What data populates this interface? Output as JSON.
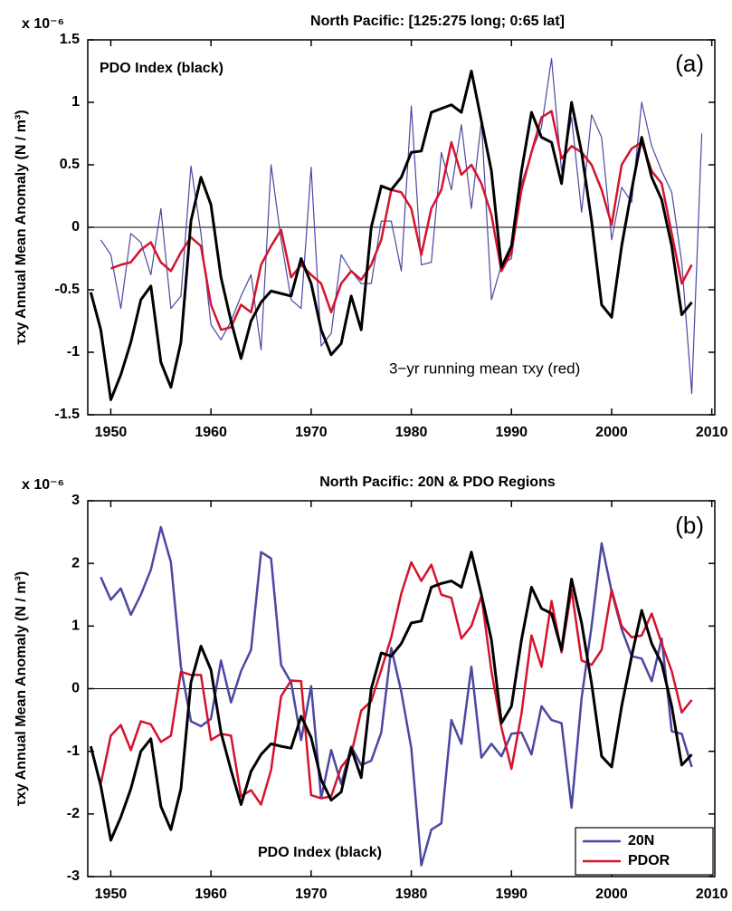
{
  "chart_data": [
    {
      "type": "line",
      "title": "North Pacific:  [125:275 long; 0:65 lat]",
      "y_multiplier": "x 10⁻⁶",
      "ylabel": "τxy  Annual Mean Anomaly  (N / m³)",
      "annotations": [
        "PDO Index  (black)",
        "3−yr running mean τxy  (red)",
        "(a)"
      ],
      "x": [
        1948,
        1949,
        1950,
        1951,
        1952,
        1953,
        1954,
        1955,
        1956,
        1957,
        1958,
        1959,
        1960,
        1961,
        1962,
        1963,
        1964,
        1965,
        1966,
        1967,
        1968,
        1969,
        1970,
        1971,
        1972,
        1973,
        1974,
        1975,
        1976,
        1977,
        1978,
        1979,
        1980,
        1981,
        1982,
        1983,
        1984,
        1985,
        1986,
        1987,
        1988,
        1989,
        1990,
        1991,
        1992,
        1993,
        1994,
        1995,
        1996,
        1997,
        1998,
        1999,
        2000,
        2001,
        2002,
        2003,
        2004,
        2005,
        2006,
        2007,
        2008,
        2009
      ],
      "series": [
        {
          "color": "#4b47a3",
          "values": [
            null,
            -0.1,
            -0.22,
            -0.65,
            -0.05,
            -0.12,
            -0.38,
            0.15,
            -0.65,
            -0.55,
            0.49,
            -0.05,
            -0.78,
            -0.9,
            -0.75,
            -0.55,
            -0.38,
            -0.98,
            0.5,
            -0.1,
            -0.58,
            -0.65,
            0.48,
            -0.95,
            -0.85,
            -0.22,
            -0.35,
            -0.45,
            -0.45,
            0.05,
            0.05,
            -0.35,
            0.97,
            -0.3,
            -0.28,
            0.6,
            0.3,
            0.82,
            0.15,
            0.85,
            -0.58,
            -0.3,
            -0.25,
            0.35,
            0.6,
            0.8,
            1.35,
            0.45,
            0.88,
            0.12,
            0.9,
            0.72,
            -0.1,
            0.32,
            0.2,
            1.0,
            0.65,
            0.45,
            0.28,
            -0.28,
            -1.33,
            0.75
          ]
        },
        {
          "color": "#d5132c",
          "values": [
            null,
            null,
            -0.33,
            -0.3,
            -0.28,
            -0.18,
            -0.12,
            -0.28,
            -0.35,
            -0.2,
            -0.08,
            -0.15,
            -0.62,
            -0.82,
            -0.8,
            -0.62,
            -0.68,
            -0.3,
            -0.15,
            -0.02,
            -0.4,
            -0.3,
            -0.38,
            -0.45,
            -0.68,
            -0.45,
            -0.35,
            -0.42,
            -0.3,
            -0.1,
            0.3,
            0.28,
            0.15,
            -0.22,
            0.15,
            0.3,
            0.68,
            0.42,
            0.5,
            0.35,
            0.1,
            -0.35,
            -0.2,
            0.3,
            0.6,
            0.88,
            0.93,
            0.55,
            0.65,
            0.6,
            0.5,
            0.3,
            0.02,
            0.5,
            0.63,
            0.68,
            0.45,
            0.35,
            -0.05,
            -0.45,
            -0.3,
            null
          ]
        },
        {
          "color": "#000000",
          "values": [
            -0.52,
            -0.82,
            -1.38,
            -1.18,
            -0.92,
            -0.58,
            -0.47,
            -1.08,
            -1.28,
            -0.92,
            0.05,
            0.4,
            0.18,
            -0.4,
            -0.75,
            -1.05,
            -0.75,
            -0.6,
            -0.51,
            -0.53,
            -0.55,
            -0.25,
            -0.45,
            -0.82,
            -1.02,
            -0.93,
            -0.55,
            -0.82,
            0.0,
            0.33,
            0.3,
            0.4,
            0.6,
            0.61,
            0.92,
            0.95,
            0.98,
            0.92,
            1.25,
            0.85,
            0.45,
            -0.32,
            -0.15,
            0.45,
            0.92,
            0.72,
            0.68,
            0.35,
            1.0,
            0.6,
            0.05,
            -0.62,
            -0.72,
            -0.15,
            0.3,
            0.72,
            0.4,
            0.22,
            -0.15,
            -0.7,
            -0.6,
            null
          ]
        }
      ],
      "xlim": [
        1947.7,
        2010.3
      ],
      "xticks": [
        1950,
        1960,
        1970,
        1980,
        1990,
        2000,
        2010
      ],
      "ylim": [
        -1.5,
        1.5
      ],
      "yticks": [
        -1.5,
        -1,
        -0.5,
        0,
        0.5,
        1,
        1.5
      ],
      "grid": false
    },
    {
      "type": "line",
      "title": "North Pacific: 20N  &  PDO Regions",
      "y_multiplier": "x 10⁻⁶",
      "ylabel": "τxy  Annual Mean Anomaly  (N / m³)",
      "annotations": [
        "(b)",
        "PDO Index  (black)"
      ],
      "x": [
        1948,
        1949,
        1950,
        1951,
        1952,
        1953,
        1954,
        1955,
        1956,
        1957,
        1958,
        1959,
        1960,
        1961,
        1962,
        1963,
        1964,
        1965,
        1966,
        1967,
        1968,
        1969,
        1970,
        1971,
        1972,
        1973,
        1974,
        1975,
        1976,
        1977,
        1978,
        1979,
        1980,
        1981,
        1982,
        1983,
        1984,
        1985,
        1986,
        1987,
        1988,
        1989,
        1990,
        1991,
        1992,
        1993,
        1994,
        1995,
        1996,
        1997,
        1998,
        1999,
        2000,
        2001,
        2002,
        2003,
        2004,
        2005,
        2006,
        2007,
        2008
      ],
      "series": [
        {
          "name": "20N",
          "color": "#4b47a3",
          "values": [
            null,
            1.78,
            1.42,
            1.6,
            1.18,
            1.5,
            1.9,
            2.58,
            2.02,
            0.35,
            -0.52,
            -0.6,
            -0.48,
            0.45,
            -0.22,
            0.28,
            0.62,
            2.18,
            2.08,
            0.38,
            0.1,
            -0.82,
            0.04,
            -1.75,
            -0.98,
            -1.52,
            -0.92,
            -1.22,
            -1.15,
            -0.7,
            0.65,
            -0.05,
            -0.95,
            -2.82,
            -2.25,
            -2.15,
            -0.5,
            -0.88,
            0.35,
            -1.1,
            -0.88,
            -1.08,
            -0.72,
            -0.7,
            -1.05,
            -0.28,
            -0.5,
            -0.55,
            -1.9,
            -0.15,
            1.0,
            2.32,
            1.55,
            0.95,
            0.52,
            0.48,
            0.12,
            0.8,
            -0.68,
            -0.72,
            -1.25
          ]
        },
        {
          "name": "PDOR",
          "color": "#d5132c",
          "values": [
            null,
            -1.52,
            -0.75,
            -0.58,
            -0.98,
            -0.52,
            -0.57,
            -0.85,
            -0.75,
            0.27,
            0.22,
            0.22,
            -0.82,
            -0.72,
            -0.75,
            -1.72,
            -1.62,
            -1.85,
            -1.3,
            -0.12,
            0.13,
            0.12,
            -1.7,
            -1.75,
            -1.72,
            -1.25,
            -1.05,
            -0.35,
            -0.2,
            0.3,
            0.82,
            1.52,
            2.02,
            1.72,
            1.98,
            1.5,
            1.45,
            0.8,
            1.0,
            1.48,
            0.28,
            -0.62,
            -1.28,
            -0.4,
            0.85,
            0.35,
            1.4,
            0.58,
            1.58,
            0.45,
            0.38,
            0.62,
            1.58,
            1.0,
            0.82,
            0.85,
            1.2,
            0.72,
            0.28,
            -0.38,
            -0.18
          ]
        },
        {
          "color": "#000000",
          "values": [
            -0.92,
            -1.55,
            -2.42,
            -2.05,
            -1.6,
            -1.0,
            -0.8,
            -1.88,
            -2.25,
            -1.6,
            0.1,
            0.68,
            0.3,
            -0.7,
            -1.3,
            -1.85,
            -1.32,
            -1.05,
            -0.88,
            -0.92,
            -0.95,
            -0.44,
            -0.78,
            -1.45,
            -1.78,
            -1.65,
            -0.95,
            -1.42,
            0.0,
            0.57,
            0.52,
            0.72,
            1.05,
            1.08,
            1.62,
            1.68,
            1.72,
            1.62,
            2.18,
            1.5,
            0.78,
            -0.55,
            -0.28,
            0.78,
            1.62,
            1.28,
            1.2,
            0.62,
            1.75,
            1.05,
            0.08,
            -1.08,
            -1.25,
            -0.28,
            0.52,
            1.25,
            0.72,
            0.4,
            -0.28,
            -1.22,
            -1.05
          ]
        }
      ],
      "xlim": [
        1947.7,
        2010.3
      ],
      "xticks": [
        1950,
        1960,
        1970,
        1980,
        1990,
        2000,
        2010
      ],
      "ylim": [
        -3,
        3
      ],
      "yticks": [
        -3,
        -2,
        -1,
        0,
        1,
        2,
        3
      ],
      "grid": false,
      "legend": "lower right"
    }
  ]
}
